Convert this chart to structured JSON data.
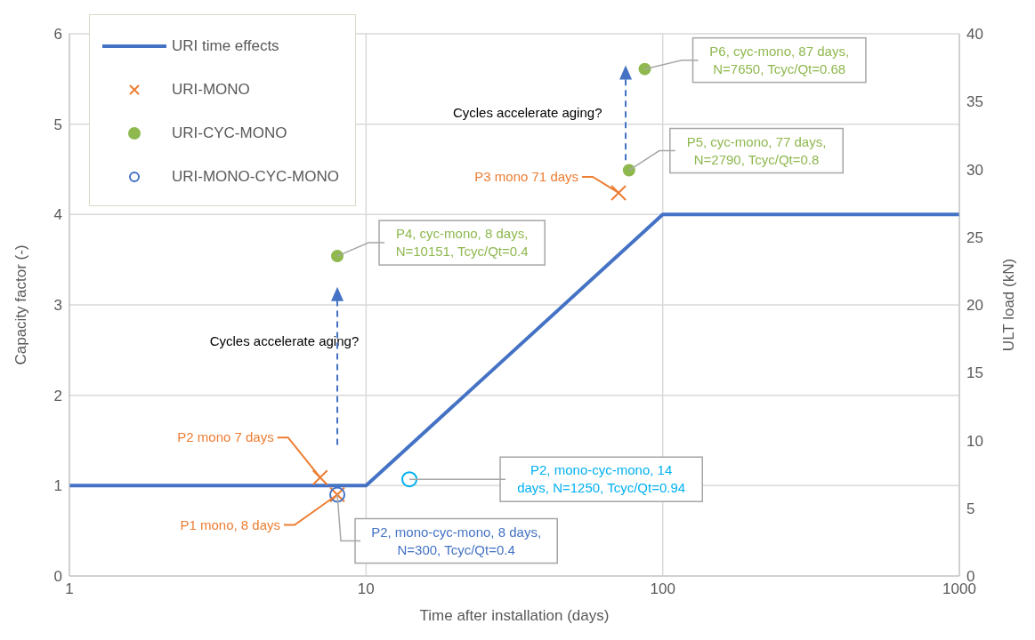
{
  "chart_data": {
    "type": "scatter",
    "xlabel": "Time after installation (days)",
    "ylabel": "Capacity factor (-)",
    "y2label": "ULT load (kN)",
    "log": "x",
    "xlim": [
      1,
      1000
    ],
    "xticks": [
      1,
      10,
      100,
      1000
    ],
    "ylim": [
      0,
      6
    ],
    "yticks": [
      0,
      1,
      2,
      3,
      4,
      5,
      6
    ],
    "y2lim": [
      0,
      40
    ],
    "y2ticks": [
      0,
      5,
      10,
      15,
      20,
      25,
      30,
      35,
      40
    ],
    "grid": true,
    "legend": "top left",
    "series": [
      {
        "name": "URI time effects",
        "type": "line",
        "color": "#4472c4",
        "marker": "none",
        "line_style": "solid",
        "x": [
          1,
          10,
          100,
          1000
        ],
        "values": [
          1,
          1,
          4,
          4
        ]
      },
      {
        "name": "URI-MONO",
        "color": "#ed7d31",
        "marker": "cross",
        "x": [
          7,
          8,
          71
        ],
        "values": [
          1.09,
          0.9,
          4.24
        ]
      },
      {
        "name": "URI-CYC-MONO",
        "color": "#8fb84f",
        "marker": "circle",
        "x": [
          8,
          77,
          87
        ],
        "values": [
          3.54,
          4.49,
          5.61
        ]
      },
      {
        "name": "URI-MONO-CYC-MONO",
        "color": "#4472c4",
        "colors": [
          "#4472c4",
          "#00b0f0"
        ],
        "marker": "circle",
        "x": [
          8,
          14
        ],
        "values": [
          0.9,
          1.07
        ]
      }
    ],
    "annotations": [
      {
        "text": "P2 mono 7 days",
        "x": 7,
        "y": 1.09
      },
      {
        "text": "P1 mono, 8 days",
        "x": 8,
        "y": 0.9
      },
      {
        "text": "P3 mono 71 days",
        "x": 71,
        "y": 4.24
      },
      {
        "text": "P4, cyc-mono, 8 days, N=10151, Tcyc/Qt=0.4",
        "x": 8,
        "y": 3.54
      },
      {
        "text": "P5, cyc-mono, 77 days, N=2790, Tcyc/Qt=0.8",
        "x": 77,
        "y": 4.49
      },
      {
        "text": "P6, cyc-mono, 87 days, N=7650, Tcyc/Qt=0.68",
        "x": 87,
        "y": 5.61
      },
      {
        "text": "P2, mono-cyc-mono, 14 days, N=1250, Tcyc/Qt=0.94",
        "x": 14,
        "y": 1.07
      },
      {
        "text": "P2, mono-cyc-mono, 8 days, N=300, Tcyc/Qt=0.4",
        "x": 8,
        "y": 0.9
      },
      "Cycles accelerate aging?",
      "Cycles accelerate aging?"
    ]
  }
}
